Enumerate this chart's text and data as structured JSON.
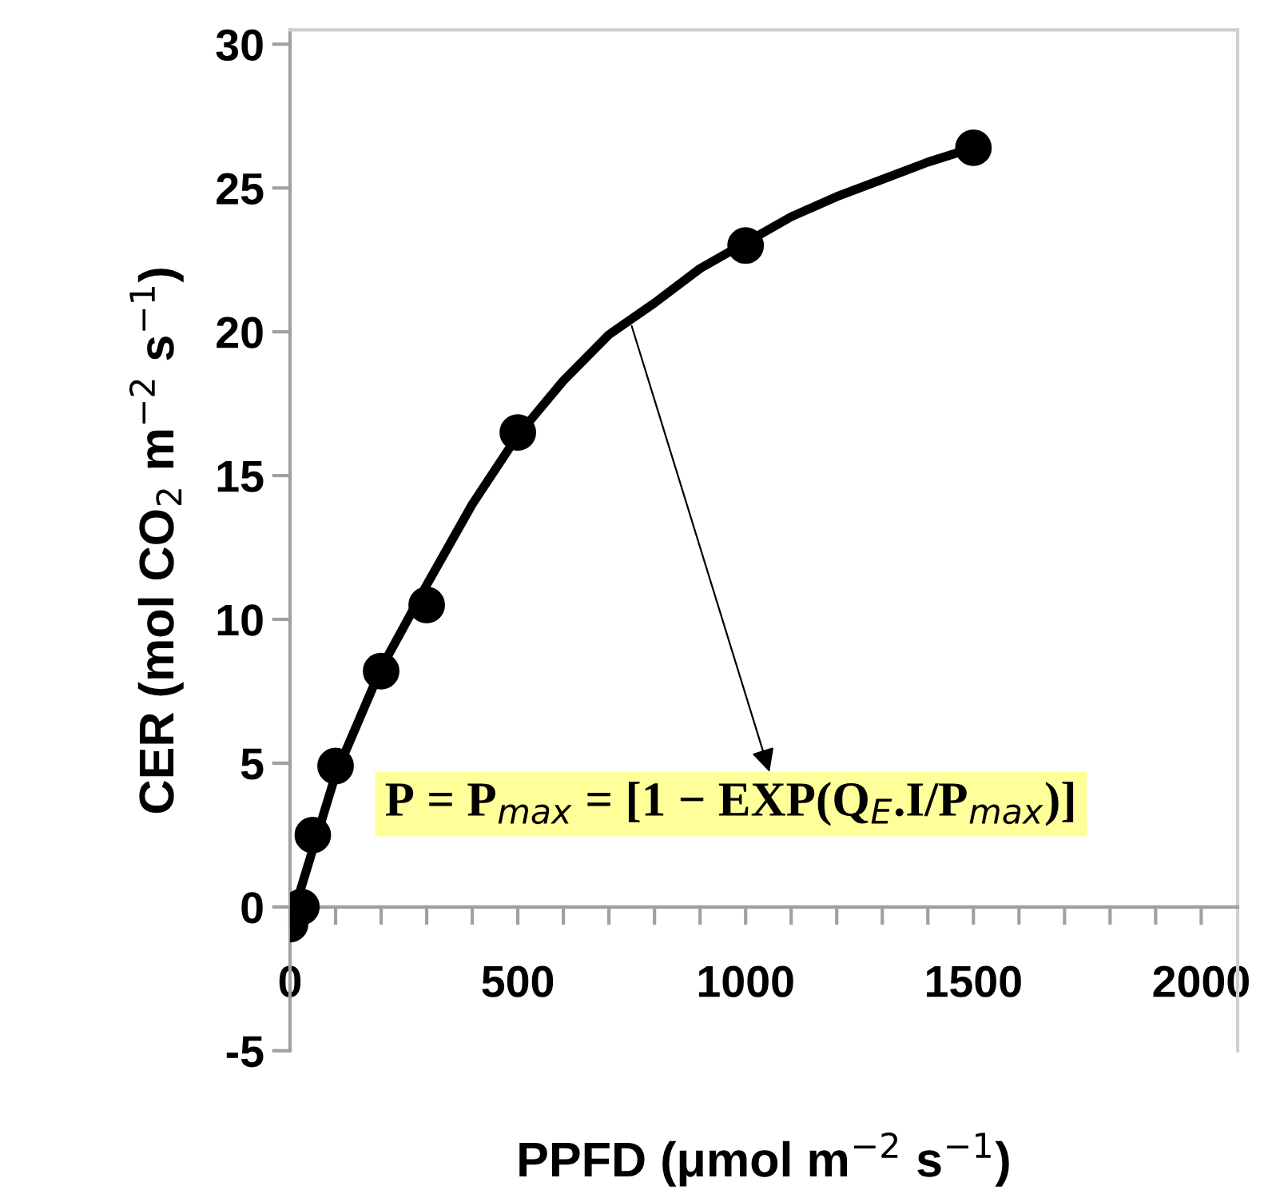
{
  "chart_data": {
    "type": "scatter",
    "xlabel": "PPFD (μmol m$^{−2}$ s$^{−1}$)",
    "ylabel": "CER (mol CO$_{2}$ m$^{−2}$ s$^{−1}$)",
    "xlim": [
      0,
      2080
    ],
    "ylim": [
      -5,
      30.5
    ],
    "xticks": [
      0,
      500,
      1000,
      1500,
      2000
    ],
    "yticks": [
      -5,
      0,
      5,
      10,
      15,
      20,
      25,
      30
    ],
    "grid": false,
    "legend": false,
    "marker": "circle",
    "series": [
      {
        "color": "#000000",
        "x": [
          0,
          25,
          50,
          100,
          200,
          300,
          500,
          1000,
          1500
        ],
        "values": [
          -0.6,
          0,
          2.5,
          4.9,
          8.2,
          10.5,
          16.5,
          23,
          26.4
        ]
      },
      {
        "type": "line",
        "color": "#000000",
        "line_style": "solid",
        "marker": "none",
        "x": [
          0,
          100,
          200,
          300,
          400,
          500,
          600,
          700,
          800,
          900,
          1000,
          1100,
          1200,
          1300,
          1400,
          1500
        ],
        "values": [
          -0.6,
          4.6,
          8.3,
          11.2,
          14.0,
          16.4,
          18.3,
          19.9,
          21.0,
          22.2,
          23.1,
          24.0,
          24.7,
          25.3,
          25.9,
          26.4
        ]
      }
    ],
    "annotations": [
      {
        "text": "P = P$_{max}$ = [1 − EXP(Q$_{E}$.I/P$_{max}$)]",
        "x": 750,
        "y": 20.2
      }
    ]
  }
}
